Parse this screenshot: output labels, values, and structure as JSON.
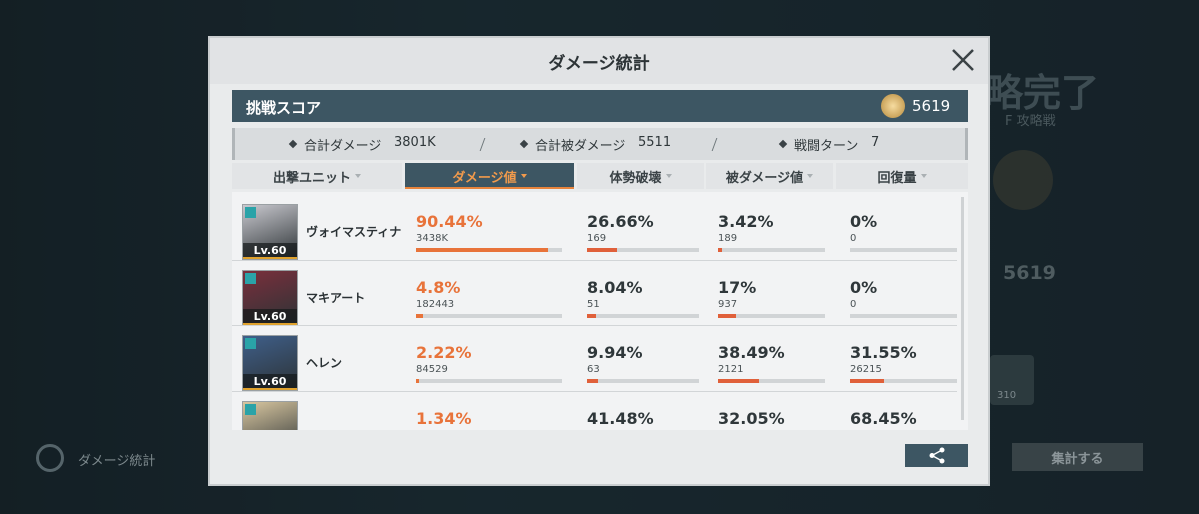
{
  "background": {
    "title_fragment": "略完了",
    "subtitle_fragment": "F 攻略戦",
    "score_fragment": "5619",
    "sidebar_label": "ダメージ統計",
    "button_label": "集計する",
    "badge_count": "310"
  },
  "dialog": {
    "title": "ダメージ統計",
    "score": {
      "label": "挑戦スコア",
      "value": "5619"
    },
    "summary": [
      {
        "label": "合計ダメージ",
        "value": "3801K"
      },
      {
        "label": "合計被ダメージ",
        "value": "5511"
      },
      {
        "label": "戦闘ターン",
        "value": "7"
      }
    ],
    "tabs": [
      "出撃ユニット",
      "ダメージ値",
      "体勢破壊",
      "被ダメージ値",
      "回復量"
    ],
    "active_tab": 1,
    "rows": [
      {
        "name": "ヴォイマスティナ",
        "level": "Lv.60",
        "damage": {
          "pct": "90.44%",
          "value": "3438K"
        },
        "break": {
          "pct": "26.66%",
          "value": "169"
        },
        "taken": {
          "pct": "3.42%",
          "value": "189"
        },
        "heal": {
          "pct": "0%",
          "value": "0"
        }
      },
      {
        "name": "マキアート",
        "level": "Lv.60",
        "damage": {
          "pct": "4.8%",
          "value": "182443"
        },
        "break": {
          "pct": "8.04%",
          "value": "51"
        },
        "taken": {
          "pct": "17%",
          "value": "937"
        },
        "heal": {
          "pct": "0%",
          "value": "0"
        }
      },
      {
        "name": "ヘレン",
        "level": "Lv.60",
        "damage": {
          "pct": "2.22%",
          "value": "84529"
        },
        "break": {
          "pct": "9.94%",
          "value": "63"
        },
        "taken": {
          "pct": "38.49%",
          "value": "2121"
        },
        "heal": {
          "pct": "31.55%",
          "value": "26215"
        }
      },
      {
        "damage": {
          "pct": "1.34%"
        },
        "break": {
          "pct": "41.48%"
        },
        "taken": {
          "pct": "32.05%"
        },
        "heal": {
          "pct": "68.45%"
        }
      }
    ]
  }
}
